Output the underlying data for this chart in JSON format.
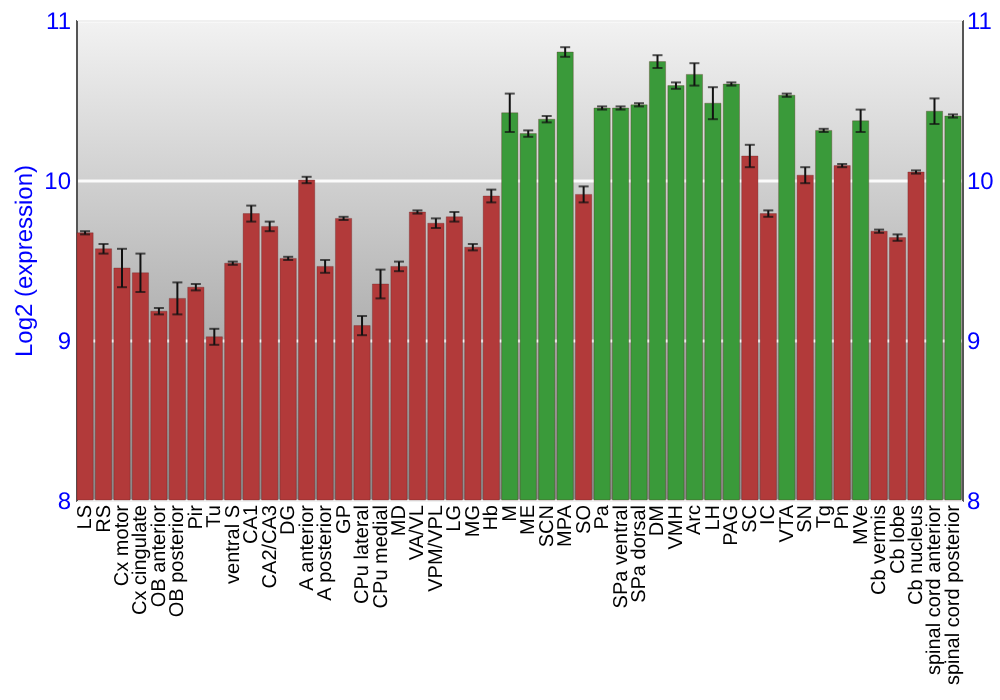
{
  "chart_data": {
    "type": "bar",
    "ylabel": "Log2 (expression)",
    "categories": [
      "LS",
      "RS",
      "Cx motor",
      "Cx cingulate",
      "OB anterior",
      "OB posterior",
      "Pir",
      "Tu",
      "ventral S",
      "CA1",
      "CA2/CA3",
      "DG",
      "A anterior",
      "A posterior",
      "GP",
      "CPu lateral",
      "CPu medial",
      "MD",
      "VA/VL",
      "VPM/VPL",
      "LG",
      "MG",
      "Hb",
      "M",
      "ME",
      "SCN",
      "MPA",
      "SO",
      "Pa",
      "SPa ventral",
      "SPa dorsal",
      "DM",
      "VMH",
      "Arc",
      "LH",
      "PAG",
      "SC",
      "IC",
      "VTA",
      "SN",
      "Tg",
      "Pn",
      "MVe",
      "Cb vermis",
      "Cb lobe",
      "Cb nucleus",
      "spinal cord anterior",
      "spinal cord posterior"
    ],
    "values": [
      9.67,
      9.57,
      9.45,
      9.42,
      9.18,
      9.26,
      9.33,
      9.02,
      9.48,
      9.79,
      9.71,
      9.51,
      10.0,
      9.46,
      9.76,
      9.09,
      9.35,
      9.46,
      9.8,
      9.73,
      9.77,
      9.58,
      9.9,
      10.42,
      10.29,
      10.38,
      10.8,
      9.91,
      10.45,
      10.45,
      10.47,
      10.74,
      10.59,
      10.66,
      10.48,
      10.6,
      10.15,
      9.79,
      10.53,
      10.03,
      10.31,
      10.09,
      10.37,
      9.68,
      9.64,
      10.05,
      10.43,
      10.4
    ],
    "errors": [
      0.01,
      0.03,
      0.12,
      0.12,
      0.02,
      0.1,
      0.02,
      0.05,
      0.01,
      0.05,
      0.03,
      0.01,
      0.02,
      0.04,
      0.01,
      0.06,
      0.09,
      0.03,
      0.01,
      0.03,
      0.03,
      0.02,
      0.04,
      0.12,
      0.02,
      0.02,
      0.03,
      0.05,
      0.01,
      0.01,
      0.01,
      0.04,
      0.02,
      0.07,
      0.1,
      0.01,
      0.07,
      0.02,
      0.01,
      0.05,
      0.01,
      0.01,
      0.07,
      0.01,
      0.02,
      0.01,
      0.08,
      0.01
    ],
    "colors": [
      "#b23a3a",
      "#b23a3a",
      "#b23a3a",
      "#b23a3a",
      "#b23a3a",
      "#b23a3a",
      "#b23a3a",
      "#b23a3a",
      "#b23a3a",
      "#b23a3a",
      "#b23a3a",
      "#b23a3a",
      "#b23a3a",
      "#b23a3a",
      "#b23a3a",
      "#b23a3a",
      "#b23a3a",
      "#b23a3a",
      "#b23a3a",
      "#b23a3a",
      "#b23a3a",
      "#b23a3a",
      "#b23a3a",
      "#3a9a3a",
      "#3a9a3a",
      "#3a9a3a",
      "#3a9a3a",
      "#b23a3a",
      "#3a9a3a",
      "#3a9a3a",
      "#3a9a3a",
      "#3a9a3a",
      "#3a9a3a",
      "#3a9a3a",
      "#3a9a3a",
      "#3a9a3a",
      "#b23a3a",
      "#b23a3a",
      "#3a9a3a",
      "#b23a3a",
      "#3a9a3a",
      "#b23a3a",
      "#3a9a3a",
      "#b23a3a",
      "#b23a3a",
      "#b23a3a",
      "#3a9a3a",
      "#3a9a3a"
    ],
    "ylim": [
      8,
      11
    ],
    "yticks": [
      8,
      9,
      10,
      11
    ],
    "y2lim": [
      8,
      11
    ],
    "y2ticks": [
      8,
      9,
      10,
      11
    ],
    "grid": "y"
  }
}
